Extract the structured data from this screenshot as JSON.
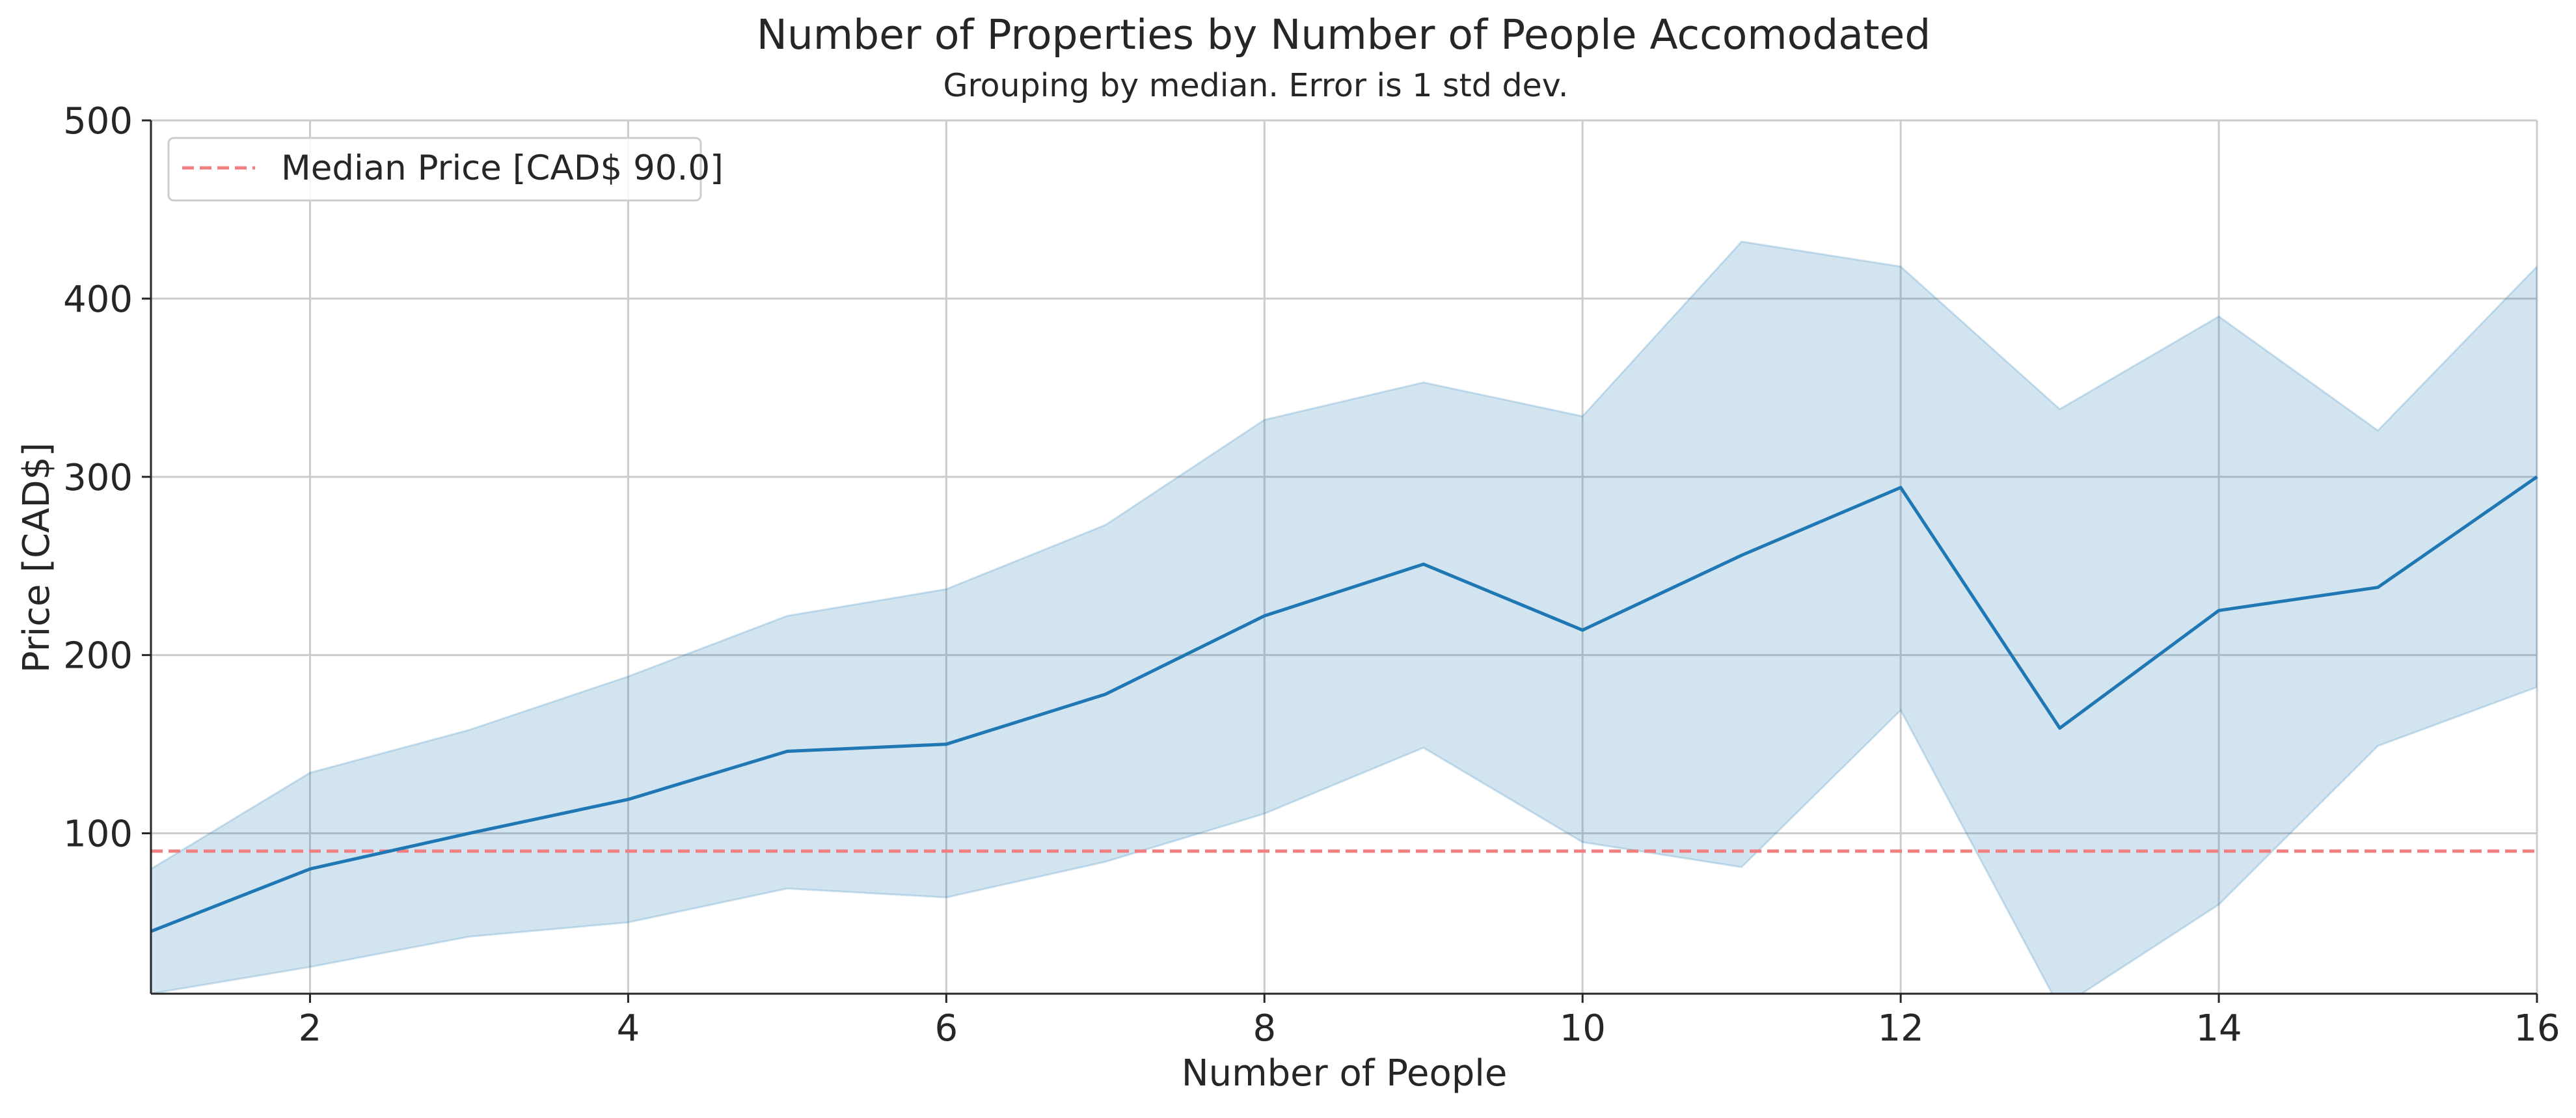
{
  "chart_data": {
    "type": "line",
    "title": "Number of Properties by Number of People Accomodated",
    "subtitle": "Grouping by median. Error is 1 std dev.",
    "xlabel": "Number of People",
    "ylabel": "Price [CAD$]",
    "xlim": [
      1,
      16
    ],
    "ylim": [
      10,
      500
    ],
    "x_ticks": [
      2,
      4,
      6,
      8,
      10,
      12,
      14,
      16
    ],
    "y_ticks": [
      100,
      200,
      300,
      400,
      500
    ],
    "grid": true,
    "x": [
      1,
      2,
      3,
      4,
      5,
      6,
      7,
      8,
      9,
      10,
      11,
      12,
      13,
      14,
      15,
      16
    ],
    "series": [
      {
        "values": [
          45,
          80,
          100,
          119,
          146,
          150,
          178,
          222,
          251,
          214,
          256,
          294,
          159,
          225,
          238,
          300
        ],
        "lower": [
          10,
          25,
          42,
          50,
          69,
          64,
          84,
          111,
          148,
          95,
          81,
          169,
          2,
          60,
          149,
          182
        ],
        "upper": [
          80,
          134,
          158,
          188,
          222,
          237,
          273,
          332,
          353,
          334,
          432,
          418,
          338,
          390,
          326,
          418
        ],
        "color": "#1f77b4",
        "band_color": "#1f77b4"
      }
    ],
    "reference_line": {
      "y": 90.0,
      "label": "Median Price [CAD$ 90.0]",
      "color": "#f08080",
      "style": "dashed"
    },
    "legend": {
      "position": "top-left",
      "entries": [
        "Median Price [CAD$ 90.0]"
      ]
    }
  }
}
